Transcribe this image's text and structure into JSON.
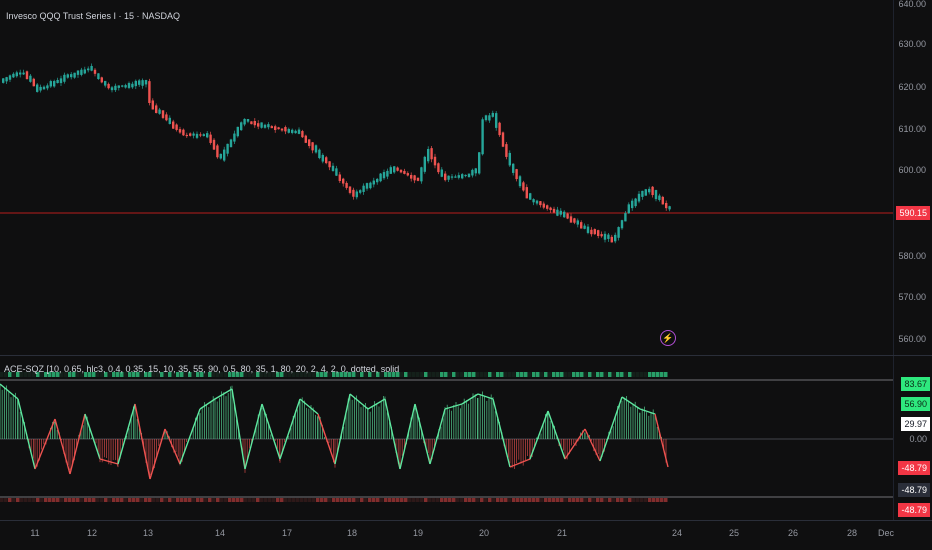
{
  "header": {
    "symbol_title": "Invesco QQQ Trust Series I · 15 · NASDAQ"
  },
  "indicator": {
    "label": "ACE-SQZ [10, 0.65, hlc3, 0.4, 0.35, 15, 10, 35, 55, 90, 0.5, 80, 35, 1, 80, 20, 2, 4, 2, 0, dotted, solid"
  },
  "price_axis": {
    "ticks": [
      "640.00",
      "630.00",
      "620.00",
      "610.00",
      "600.00",
      "580.00",
      "570.00",
      "560.00"
    ],
    "current_price": "590.15"
  },
  "oscillator_axis": {
    "badges": [
      "83.67",
      "56.90",
      "29.97",
      "0.00",
      "-48.79",
      "-48.79",
      "-48.79"
    ]
  },
  "date_axis": {
    "ticks": [
      "11",
      "12",
      "13",
      "14",
      "17",
      "18",
      "19",
      "20",
      "21",
      "24",
      "25",
      "26",
      "28",
      "Dec"
    ]
  },
  "colors": {
    "background": "#0f0f10",
    "up": "#26a69a",
    "down": "#ef5350",
    "osc_up": "#5ee8a0",
    "osc_down": "#ef5350",
    "price_line": "#b71c1c",
    "accent": "#f23645"
  },
  "icons": {
    "flash": "lightning-icon"
  }
}
